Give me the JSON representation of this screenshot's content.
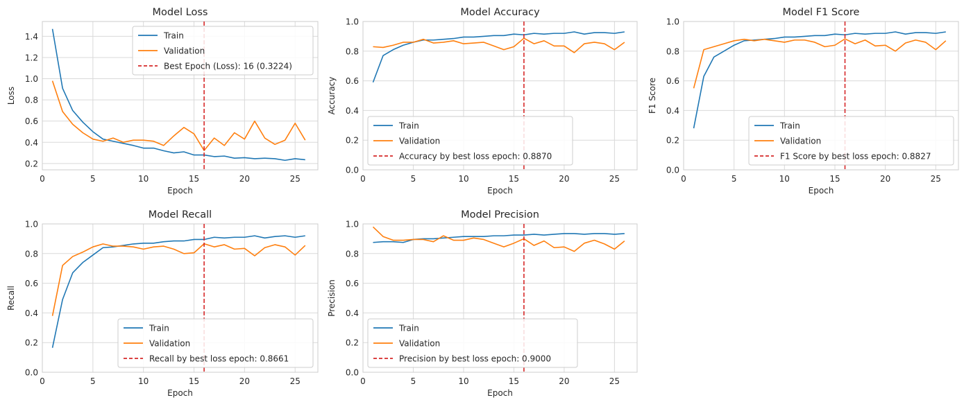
{
  "colors": {
    "train": "#1f77b4",
    "validation": "#ff7f0e",
    "best": "#d62728",
    "grid": "#d9d9d9",
    "spine": "#cccccc"
  },
  "chart_data": [
    {
      "type": "line",
      "title": "Model Loss",
      "xlabel": "Epoch",
      "ylabel": "Loss",
      "xlim": [
        0,
        27.25
      ],
      "ylim": [
        0.14,
        1.54
      ],
      "xticks": [
        "0",
        "5",
        "10",
        "15",
        "20",
        "25"
      ],
      "yticks": [
        "0.2",
        "0.4",
        "0.6",
        "0.8",
        "1.0",
        "1.2",
        "1.4"
      ],
      "grid": true,
      "legend_position": "upper-right",
      "x": [
        1,
        2,
        3,
        4,
        5,
        6,
        7,
        8,
        9,
        10,
        11,
        12,
        13,
        14,
        15,
        16,
        17,
        18,
        19,
        20,
        21,
        22,
        23,
        24,
        25,
        26
      ],
      "series": [
        {
          "name": "Train",
          "color": "train",
          "values": [
            1.47,
            0.91,
            0.7,
            0.59,
            0.5,
            0.43,
            0.41,
            0.39,
            0.37,
            0.345,
            0.345,
            0.32,
            0.3,
            0.31,
            0.28,
            0.28,
            0.265,
            0.27,
            0.25,
            0.255,
            0.245,
            0.25,
            0.245,
            0.23,
            0.245,
            0.235
          ]
        },
        {
          "name": "Validation",
          "color": "validation",
          "values": [
            0.98,
            0.69,
            0.57,
            0.49,
            0.43,
            0.41,
            0.44,
            0.4,
            0.42,
            0.42,
            0.41,
            0.37,
            0.46,
            0.54,
            0.48,
            0.3224,
            0.44,
            0.37,
            0.49,
            0.43,
            0.6,
            0.44,
            0.38,
            0.42,
            0.58,
            0.42
          ]
        }
      ],
      "best_epoch": {
        "x": 16,
        "label": "Best Epoch (Loss): 16 (0.3224)"
      }
    },
    {
      "type": "line",
      "title": "Model Accuracy",
      "xlabel": "Epoch",
      "ylabel": "Accuracy",
      "xlim": [
        0,
        27.25
      ],
      "ylim": [
        0.0,
        1.0
      ],
      "xticks": [
        "0",
        "5",
        "10",
        "15",
        "20",
        "25"
      ],
      "yticks": [
        "0.0",
        "0.2",
        "0.4",
        "0.6",
        "0.8",
        "1.0"
      ],
      "grid": true,
      "legend_position": "lower-left",
      "x": [
        1,
        2,
        3,
        4,
        5,
        6,
        7,
        8,
        9,
        10,
        11,
        12,
        13,
        14,
        15,
        16,
        17,
        18,
        19,
        20,
        21,
        22,
        23,
        24,
        25,
        26
      ],
      "series": [
        {
          "name": "Train",
          "color": "train",
          "values": [
            0.59,
            0.77,
            0.81,
            0.84,
            0.86,
            0.875,
            0.875,
            0.88,
            0.885,
            0.895,
            0.895,
            0.9,
            0.905,
            0.905,
            0.915,
            0.91,
            0.92,
            0.915,
            0.92,
            0.92,
            0.93,
            0.915,
            0.925,
            0.925,
            0.92,
            0.93
          ]
        },
        {
          "name": "Validation",
          "color": "validation",
          "values": [
            0.83,
            0.825,
            0.84,
            0.86,
            0.86,
            0.88,
            0.855,
            0.86,
            0.87,
            0.85,
            0.855,
            0.86,
            0.835,
            0.81,
            0.83,
            0.887,
            0.85,
            0.87,
            0.835,
            0.835,
            0.79,
            0.85,
            0.86,
            0.85,
            0.81,
            0.86
          ]
        }
      ],
      "best_epoch": {
        "x": 16,
        "label": "Accuracy by best loss epoch: 0.8870"
      }
    },
    {
      "type": "line",
      "title": "Model F1 Score",
      "xlabel": "Epoch",
      "ylabel": "F1 Score",
      "xlim": [
        0,
        27.25
      ],
      "ylim": [
        0.0,
        1.0
      ],
      "xticks": [
        "0",
        "5",
        "10",
        "15",
        "20",
        "25"
      ],
      "yticks": [
        "0.0",
        "0.2",
        "0.4",
        "0.6",
        "0.8",
        "1.0"
      ],
      "grid": true,
      "legend_position": "lower-right",
      "x": [
        1,
        2,
        3,
        4,
        5,
        6,
        7,
        8,
        9,
        10,
        11,
        12,
        13,
        14,
        15,
        16,
        17,
        18,
        19,
        20,
        21,
        22,
        23,
        24,
        25,
        26
      ],
      "series": [
        {
          "name": "Train",
          "color": "train",
          "values": [
            0.28,
            0.63,
            0.76,
            0.8,
            0.84,
            0.87,
            0.875,
            0.88,
            0.885,
            0.895,
            0.895,
            0.9,
            0.905,
            0.905,
            0.915,
            0.91,
            0.92,
            0.915,
            0.92,
            0.92,
            0.93,
            0.915,
            0.925,
            0.925,
            0.92,
            0.93
          ]
        },
        {
          "name": "Validation",
          "color": "validation",
          "values": [
            0.55,
            0.81,
            0.83,
            0.85,
            0.87,
            0.88,
            0.87,
            0.88,
            0.87,
            0.86,
            0.875,
            0.875,
            0.86,
            0.83,
            0.84,
            0.883,
            0.85,
            0.875,
            0.835,
            0.84,
            0.8,
            0.855,
            0.875,
            0.86,
            0.81,
            0.87
          ]
        }
      ],
      "best_epoch": {
        "x": 16,
        "label": "F1 Score by best loss epoch: 0.8827"
      }
    },
    {
      "type": "line",
      "title": "Model Recall",
      "xlabel": "Epoch",
      "ylabel": "Recall",
      "xlim": [
        0,
        27.25
      ],
      "ylim": [
        0.0,
        1.0
      ],
      "xticks": [
        "0",
        "5",
        "10",
        "15",
        "20",
        "25"
      ],
      "yticks": [
        "0.0",
        "0.2",
        "0.4",
        "0.6",
        "0.8",
        "1.0"
      ],
      "grid": true,
      "legend_position": "lower-right",
      "x": [
        1,
        2,
        3,
        4,
        5,
        6,
        7,
        8,
        9,
        10,
        11,
        12,
        13,
        14,
        15,
        16,
        17,
        18,
        19,
        20,
        21,
        22,
        23,
        24,
        25,
        26
      ],
      "series": [
        {
          "name": "Train",
          "color": "train",
          "values": [
            0.165,
            0.49,
            0.67,
            0.74,
            0.79,
            0.84,
            0.845,
            0.855,
            0.865,
            0.87,
            0.87,
            0.88,
            0.885,
            0.885,
            0.895,
            0.895,
            0.91,
            0.905,
            0.91,
            0.91,
            0.92,
            0.905,
            0.915,
            0.92,
            0.91,
            0.92
          ]
        },
        {
          "name": "Validation",
          "color": "validation",
          "values": [
            0.38,
            0.72,
            0.78,
            0.81,
            0.845,
            0.865,
            0.85,
            0.85,
            0.845,
            0.83,
            0.845,
            0.85,
            0.83,
            0.8,
            0.805,
            0.8661,
            0.845,
            0.86,
            0.83,
            0.835,
            0.785,
            0.84,
            0.86,
            0.845,
            0.79,
            0.855
          ]
        }
      ],
      "best_epoch": {
        "x": 16,
        "label": "Recall by best loss epoch: 0.8661"
      }
    },
    {
      "type": "line",
      "title": "Model Precision",
      "xlabel": "Epoch",
      "ylabel": "Precision",
      "xlim": [
        0,
        27.25
      ],
      "ylim": [
        0.0,
        1.0
      ],
      "xticks": [
        "0",
        "5",
        "10",
        "15",
        "20",
        "25"
      ],
      "yticks": [
        "0.0",
        "0.2",
        "0.4",
        "0.6",
        "0.8",
        "1.0"
      ],
      "grid": true,
      "legend_position": "lower-left",
      "x": [
        1,
        2,
        3,
        4,
        5,
        6,
        7,
        8,
        9,
        10,
        11,
        12,
        13,
        14,
        15,
        16,
        17,
        18,
        19,
        20,
        21,
        22,
        23,
        24,
        25,
        26
      ],
      "series": [
        {
          "name": "Train",
          "color": "train",
          "values": [
            0.875,
            0.88,
            0.88,
            0.875,
            0.895,
            0.9,
            0.9,
            0.905,
            0.91,
            0.915,
            0.915,
            0.915,
            0.92,
            0.92,
            0.925,
            0.925,
            0.93,
            0.925,
            0.93,
            0.935,
            0.935,
            0.93,
            0.935,
            0.935,
            0.93,
            0.935
          ]
        },
        {
          "name": "Validation",
          "color": "validation",
          "values": [
            0.98,
            0.915,
            0.89,
            0.89,
            0.895,
            0.895,
            0.88,
            0.92,
            0.89,
            0.89,
            0.905,
            0.895,
            0.87,
            0.845,
            0.87,
            0.9,
            0.855,
            0.885,
            0.84,
            0.845,
            0.815,
            0.87,
            0.89,
            0.865,
            0.83,
            0.885
          ]
        }
      ],
      "best_epoch": {
        "x": 16,
        "label": "Precision by best loss epoch: 0.9000"
      }
    }
  ]
}
